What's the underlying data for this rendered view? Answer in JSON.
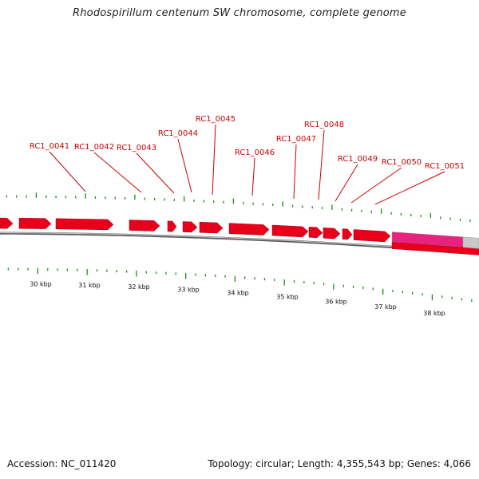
{
  "title": "Rhodospirillum centenum SW chromosome, complete genome",
  "footer": {
    "accession_label": "Accession:",
    "accession": "NC_011420",
    "topology_label": "Topology:",
    "topology": "circular",
    "length_label": "Length:",
    "length": "4,355,543 bp",
    "genes_label": "Genes:",
    "genes": "4,066"
  },
  "colors": {
    "gene": "#e8001a",
    "gene_highlight": "#e8237f",
    "gene_grey": "#c8c8c8",
    "tick": "#228822",
    "leader": "#cc0000",
    "backbone": "#777777"
  },
  "gene_labels": [
    "RC1_0041",
    "RC1_0042",
    "RC1_0043",
    "RC1_0044",
    "RC1_0045",
    "RC1_0046",
    "RC1_0047",
    "RC1_0048",
    "RC1_0049",
    "RC1_0050",
    "RC1_0051"
  ],
  "kbp_labels": [
    "30 kbp",
    "31 kbp",
    "32 kbp",
    "33 kbp",
    "34 kbp",
    "35 kbp",
    "36 kbp",
    "37 kbp",
    "38 kbp"
  ]
}
